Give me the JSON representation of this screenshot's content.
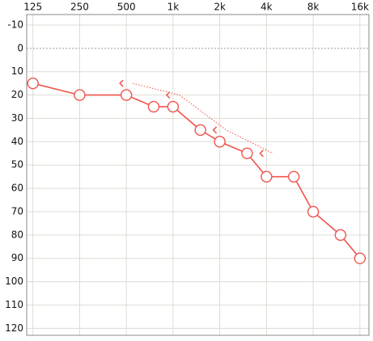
{
  "chart_data": {
    "type": "line",
    "x_scale": "log",
    "y_inverted": true,
    "grid": true,
    "x_axis_position": "top",
    "xlim": [
      114,
      18300
    ],
    "ylim": [
      -14.5,
      123
    ],
    "xticks": [
      125,
      250,
      500,
      {
        "value": 1000,
        "label": "1k"
      },
      {
        "value": 2000,
        "label": "2k"
      },
      {
        "value": 4000,
        "label": "4k"
      },
      {
        "value": 8000,
        "label": "8k"
      },
      {
        "value": 16000,
        "label": "16k"
      }
    ],
    "yticks": [
      -10,
      0,
      10,
      20,
      30,
      40,
      50,
      60,
      70,
      80,
      90,
      100,
      110,
      120
    ],
    "series": [
      {
        "color": "#f0544c",
        "marker": "circle",
        "line_style": "solid",
        "x": [
          125,
          250,
          500,
          750,
          1000,
          1500,
          2000,
          3000,
          4000,
          6000,
          8000,
          12000,
          16000
        ],
        "values": [
          15,
          20,
          20,
          25,
          25,
          35,
          40,
          45,
          55,
          55,
          70,
          80,
          90
        ]
      },
      {
        "color": "#f0544c",
        "marker": "bracket-left",
        "line_style": "dotted",
        "x": [
          500,
          1000,
          2000,
          4000
        ],
        "values": [
          15,
          20,
          35,
          45
        ]
      }
    ]
  }
}
